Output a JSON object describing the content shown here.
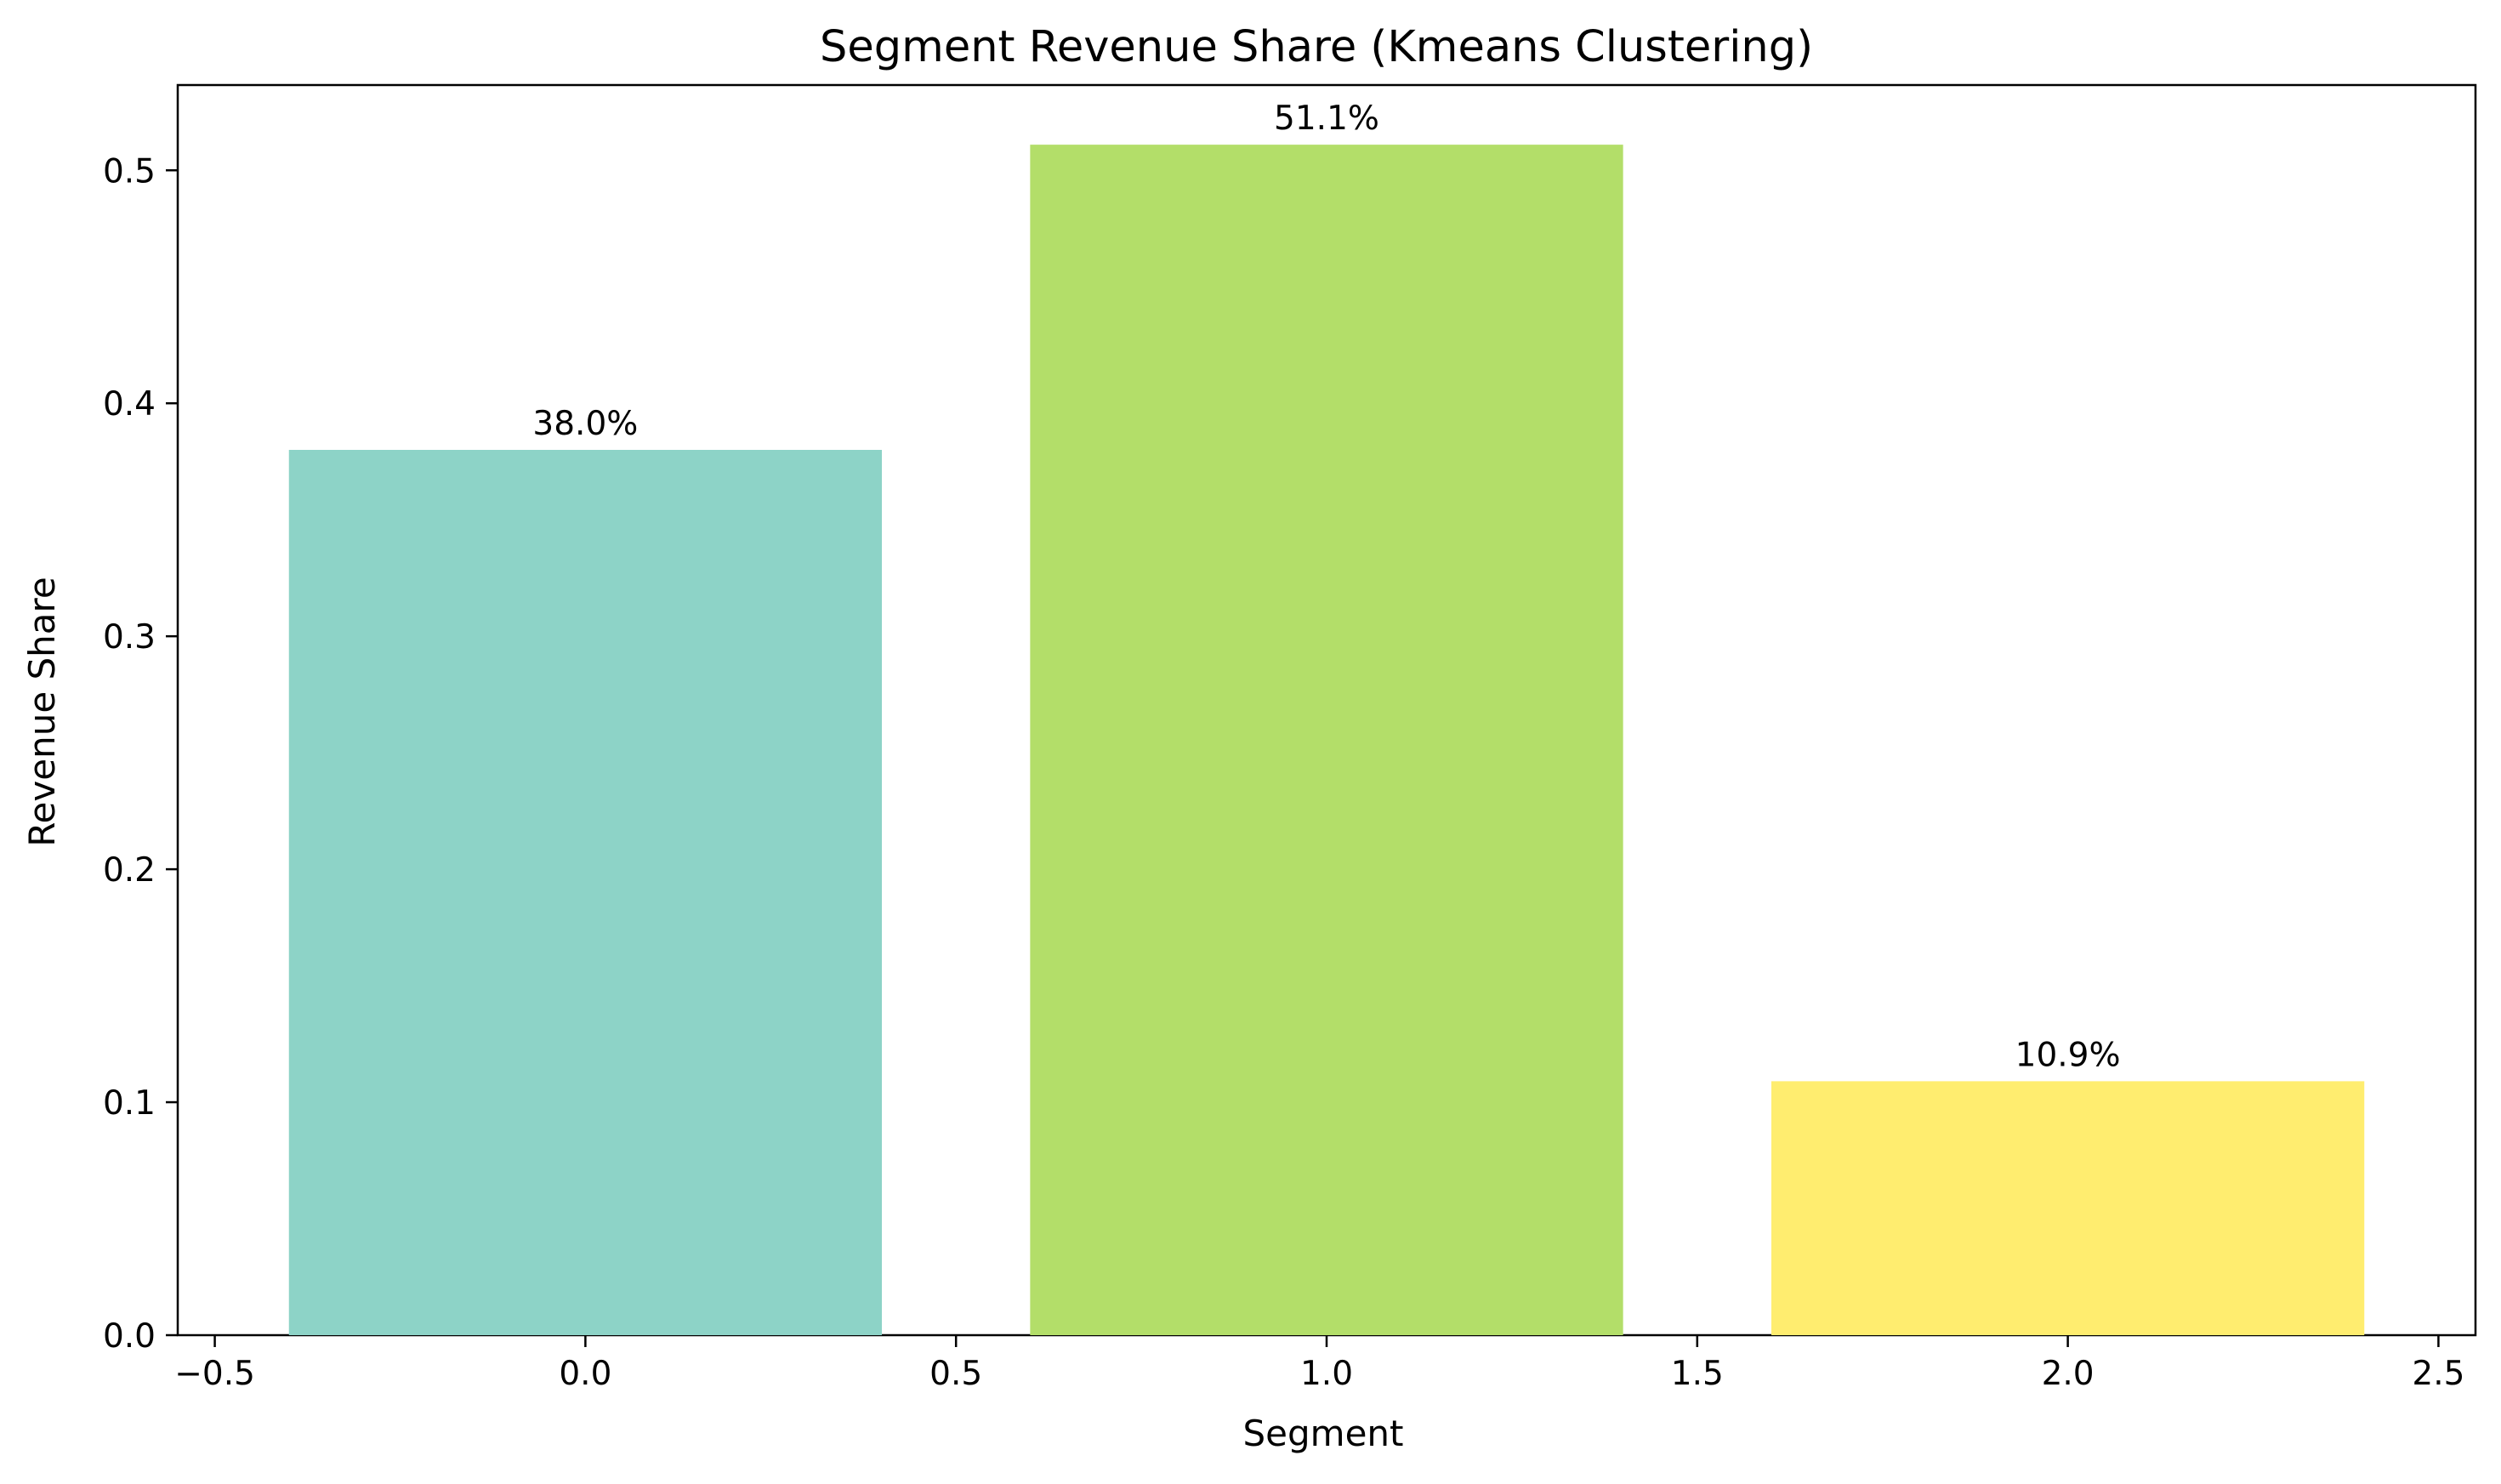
{
  "chart_data": {
    "type": "bar",
    "title": "Segment Revenue Share (Kmeans Clustering)",
    "xlabel": "Segment",
    "ylabel": "Revenue Share",
    "x": [
      0,
      1,
      2
    ],
    "values": [
      0.38,
      0.511,
      0.109
    ],
    "data_labels": [
      "38.0%",
      "51.1%",
      "10.9%"
    ],
    "bar_width": 0.8,
    "colors": [
      "#8dd3c7",
      "#b3de69",
      "#ffed6f"
    ],
    "xlim": [
      -0.55,
      2.55
    ],
    "ylim": [
      0,
      0.5366
    ],
    "xticks": [
      -0.5,
      0.0,
      0.5,
      1.0,
      1.5,
      2.0,
      2.5
    ],
    "xtick_labels": [
      "−0.5",
      "0.0",
      "0.5",
      "1.0",
      "1.5",
      "2.0",
      "2.5"
    ],
    "yticks": [
      0.0,
      0.1,
      0.2,
      0.3,
      0.4,
      0.5
    ],
    "ytick_labels": [
      "0.0",
      "0.1",
      "0.2",
      "0.3",
      "0.4",
      "0.5"
    ],
    "grid": false,
    "legend": "none"
  }
}
